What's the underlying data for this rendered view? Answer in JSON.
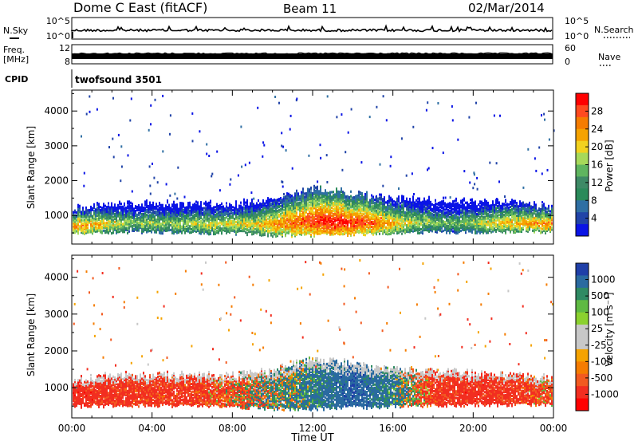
{
  "header": {
    "station": "Dome C East (fitACF)",
    "beam": "Beam 11",
    "date": "02/Mar/2014"
  },
  "status_panels": {
    "nsky_label": "N.Sky",
    "nsky_ticks": [
      "10^5",
      "10^0"
    ],
    "nsearch_label": "N.Search",
    "nsearch_ticks": [
      "10^5",
      "10^0"
    ],
    "freq_label_1": "Freq.",
    "freq_label_2": "[MHz]",
    "freq_ticks": [
      "12",
      "8"
    ],
    "nave_label": "Nave",
    "nave_ticks": [
      "60",
      "0"
    ],
    "cpid_label": "CPID",
    "cpid_value": "twofsound  3501"
  },
  "power_colorbar": {
    "title": "Power [dB]",
    "ticks": [
      "28",
      "24",
      "20",
      "16",
      "12",
      "8",
      "4"
    ],
    "colors": [
      "#ff0000",
      "#ff4a1f",
      "#f57c00",
      "#f5a300",
      "#f2d21f",
      "#a7d95a",
      "#5fb55f",
      "#3e8a66",
      "#2a8a5a",
      "#2f6fa3",
      "#2144a8",
      "#0a14e6"
    ]
  },
  "velocity_colorbar": {
    "title": "Velocity [m s⁻¹]",
    "ticks": [
      "1000",
      "500",
      "100",
      "25",
      "-25",
      "-100",
      "-500",
      "-1000"
    ],
    "colors": [
      "#1f3fa8",
      "#2a6aa0",
      "#2f8a63",
      "#5fba43",
      "#8bd12f",
      "#c8c8c8",
      "#c8c8c8",
      "#f5a300",
      "#f57c00",
      "#f25a20",
      "#f22e20",
      "#ff0000"
    ]
  },
  "chart_data": [
    {
      "type": "heatmap",
      "title": "Power [dB]",
      "xlabel": "",
      "ylabel": "Slant Range [km]",
      "xlim": [
        "00:00",
        "24:00"
      ],
      "ylim": [
        180,
        4600
      ],
      "y_ticks": [
        1000,
        2000,
        3000,
        4000
      ],
      "clim": [
        0,
        30
      ],
      "echo_band": [
        {
          "hour": 0.0,
          "low": 480,
          "high": 1150
        },
        {
          "hour": 2.0,
          "low": 500,
          "high": 1300
        },
        {
          "hour": 4.0,
          "low": 520,
          "high": 1300
        },
        {
          "hour": 6.0,
          "low": 480,
          "high": 1300
        },
        {
          "hour": 8.0,
          "low": 480,
          "high": 1300
        },
        {
          "hour": 10.0,
          "low": 420,
          "high": 1450
        },
        {
          "hour": 12.0,
          "low": 420,
          "high": 1750
        },
        {
          "hour": 14.0,
          "low": 450,
          "high": 1600
        },
        {
          "hour": 16.0,
          "low": 480,
          "high": 1450
        },
        {
          "hour": 18.0,
          "low": 500,
          "high": 1400
        },
        {
          "hour": 20.0,
          "low": 520,
          "high": 1350
        },
        {
          "hour": 22.0,
          "low": 520,
          "high": 1350
        },
        {
          "hour": 24.0,
          "low": 520,
          "high": 1200
        }
      ],
      "power_peak_db": [
        {
          "hour": 0.5,
          "db": 24
        },
        {
          "hour": 3.0,
          "db": 16
        },
        {
          "hour": 6.0,
          "db": 18
        },
        {
          "hour": 9.0,
          "db": 20
        },
        {
          "hour": 11.0,
          "db": 26
        },
        {
          "hour": 13.0,
          "db": 30
        },
        {
          "hour": 15.0,
          "db": 26
        },
        {
          "hour": 17.0,
          "db": 18
        },
        {
          "hour": 19.0,
          "db": 14
        },
        {
          "hour": 21.0,
          "db": 20
        },
        {
          "hour": 23.5,
          "db": 24
        }
      ]
    },
    {
      "type": "heatmap",
      "title": "Velocity [m s⁻¹]",
      "xlabel": "Time UT",
      "ylabel": "Slant Range [km]",
      "xlim": [
        "00:00",
        "24:00"
      ],
      "x_ticks": [
        "00:00",
        "04:00",
        "08:00",
        "12:00",
        "16:00",
        "20:00",
        "00:00"
      ],
      "ylim": [
        180,
        4600
      ],
      "y_ticks": [
        1000,
        2000,
        3000,
        4000
      ],
      "clim": [
        -1000,
        1000
      ],
      "velocity_trend": [
        {
          "hour": 0.5,
          "ms": -200
        },
        {
          "hour": 3.0,
          "ms": -150
        },
        {
          "hour": 6.0,
          "ms": -150
        },
        {
          "hour": 8.0,
          "ms": -60
        },
        {
          "hour": 10.0,
          "ms": 40
        },
        {
          "hour": 12.0,
          "ms": 120
        },
        {
          "hour": 14.0,
          "ms": 250
        },
        {
          "hour": 16.0,
          "ms": 120
        },
        {
          "hour": 18.0,
          "ms": -150
        },
        {
          "hour": 20.0,
          "ms": -200
        },
        {
          "hour": 22.0,
          "ms": -150
        },
        {
          "hour": 23.5,
          "ms": -100
        }
      ]
    }
  ]
}
